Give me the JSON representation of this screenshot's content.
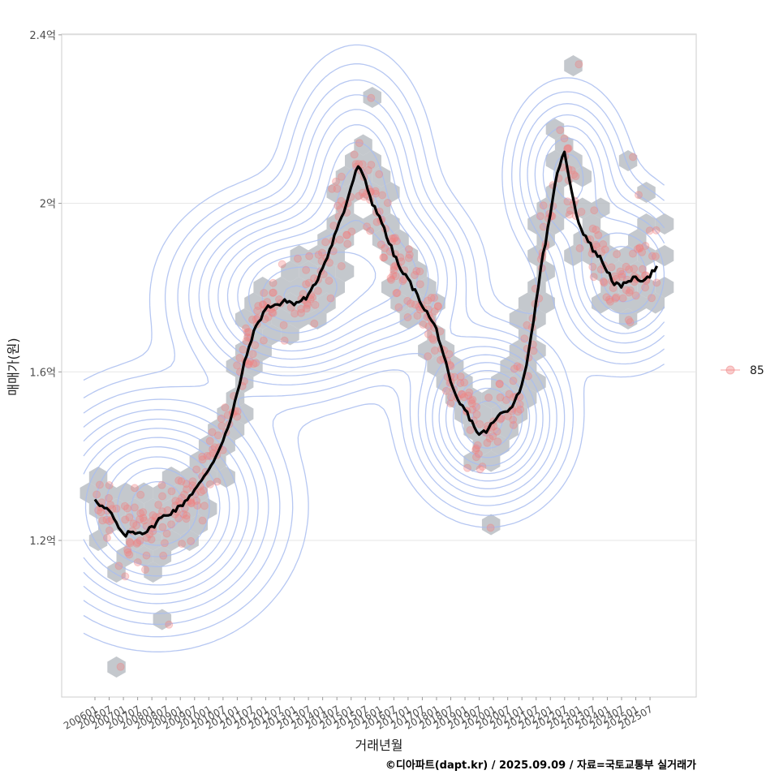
{
  "chart_data": {
    "type": "scatter",
    "x_label": "거래년월",
    "y_label": "매매가(원)",
    "caption": "©디아파트(dapt.kr) / 2025.09.09 / 자료=국토교통부 실거래가",
    "legend": [
      {
        "label": "85",
        "color": "#f08080"
      }
    ],
    "y_ticks": [
      {
        "value": 1.2,
        "label": "1.2억"
      },
      {
        "value": 1.6,
        "label": "1.6억"
      },
      {
        "value": 2.0,
        "label": "2억"
      },
      {
        "value": 2.4,
        "label": "2.4억"
      }
    ],
    "x_ticks": [
      "200601",
      "200607",
      "200701",
      "200707",
      "200801",
      "200807",
      "200901",
      "200907",
      "201001",
      "201007",
      "201101",
      "201107",
      "201201",
      "201207",
      "201301",
      "201307",
      "201401",
      "201407",
      "201501",
      "201507",
      "201601",
      "201607",
      "201701",
      "201707",
      "201801",
      "201807",
      "201901",
      "201907",
      "202001",
      "202007",
      "202101",
      "202107",
      "202201",
      "202207",
      "202301",
      "202307",
      "202401",
      "202407",
      "202501",
      "202507"
    ],
    "ylim": [
      0.84,
      2.42
    ],
    "trend_line": [
      [
        2006.0,
        1.3
      ],
      [
        2006.25,
        1.28
      ],
      [
        2006.5,
        1.27
      ],
      [
        2006.75,
        1.24
      ],
      [
        2007.0,
        1.21
      ],
      [
        2007.25,
        1.22
      ],
      [
        2007.5,
        1.22
      ],
      [
        2007.75,
        1.22
      ],
      [
        2008.0,
        1.23
      ],
      [
        2008.25,
        1.25
      ],
      [
        2008.5,
        1.26
      ],
      [
        2008.75,
        1.27
      ],
      [
        2009.0,
        1.28
      ],
      [
        2009.25,
        1.3
      ],
      [
        2009.5,
        1.32
      ],
      [
        2009.75,
        1.34
      ],
      [
        2010.0,
        1.37
      ],
      [
        2010.25,
        1.4
      ],
      [
        2010.5,
        1.44
      ],
      [
        2010.75,
        1.48
      ],
      [
        2011.0,
        1.55
      ],
      [
        2011.25,
        1.62
      ],
      [
        2011.5,
        1.68
      ],
      [
        2011.75,
        1.72
      ],
      [
        2012.0,
        1.75
      ],
      [
        2012.25,
        1.76
      ],
      [
        2012.5,
        1.76
      ],
      [
        2012.75,
        1.77
      ],
      [
        2013.0,
        1.76
      ],
      [
        2013.25,
        1.77
      ],
      [
        2013.5,
        1.78
      ],
      [
        2013.75,
        1.81
      ],
      [
        2014.0,
        1.85
      ],
      [
        2014.25,
        1.89
      ],
      [
        2014.5,
        1.94
      ],
      [
        2014.75,
        1.98
      ],
      [
        2015.0,
        2.04
      ],
      [
        2015.25,
        2.09
      ],
      [
        2015.5,
        2.05
      ],
      [
        2015.75,
        2.0
      ],
      [
        2016.0,
        1.97
      ],
      [
        2016.25,
        1.92
      ],
      [
        2016.5,
        1.88
      ],
      [
        2016.75,
        1.84
      ],
      [
        2017.0,
        1.82
      ],
      [
        2017.25,
        1.79
      ],
      [
        2017.5,
        1.76
      ],
      [
        2017.75,
        1.73
      ],
      [
        2018.0,
        1.7
      ],
      [
        2018.25,
        1.64
      ],
      [
        2018.5,
        1.57
      ],
      [
        2018.75,
        1.53
      ],
      [
        2019.0,
        1.51
      ],
      [
        2019.25,
        1.48
      ],
      [
        2019.5,
        1.45
      ],
      [
        2019.75,
        1.46
      ],
      [
        2020.0,
        1.48
      ],
      [
        2020.25,
        1.5
      ],
      [
        2020.5,
        1.51
      ],
      [
        2020.75,
        1.53
      ],
      [
        2021.0,
        1.57
      ],
      [
        2021.25,
        1.65
      ],
      [
        2021.5,
        1.77
      ],
      [
        2021.75,
        1.88
      ],
      [
        2022.0,
        1.97
      ],
      [
        2022.25,
        2.08
      ],
      [
        2022.5,
        2.12
      ],
      [
        2022.75,
        2.03
      ],
      [
        2023.0,
        1.95
      ],
      [
        2023.25,
        1.92
      ],
      [
        2023.5,
        1.89
      ],
      [
        2023.75,
        1.87
      ],
      [
        2024.0,
        1.84
      ],
      [
        2024.25,
        1.81
      ],
      [
        2024.5,
        1.8
      ],
      [
        2024.75,
        1.82
      ],
      [
        2025.0,
        1.82
      ],
      [
        2025.25,
        1.82
      ],
      [
        2025.5,
        1.83
      ],
      [
        2025.75,
        1.85
      ]
    ],
    "contour_centers": [
      {
        "x": 2008.2,
        "y": 1.28,
        "peak": 1.0,
        "sx": 2.0,
        "sy": 0.13
      },
      {
        "x": 2012.9,
        "y": 1.78,
        "peak": 0.9,
        "sx": 1.9,
        "sy": 0.11
      },
      {
        "x": 2015.2,
        "y": 2.05,
        "peak": 0.45,
        "sx": 1.2,
        "sy": 0.14
      },
      {
        "x": 2016.8,
        "y": 1.82,
        "peak": 0.4,
        "sx": 1.3,
        "sy": 0.1
      },
      {
        "x": 2019.8,
        "y": 1.49,
        "peak": 0.85,
        "sx": 1.3,
        "sy": 0.1
      },
      {
        "x": 2022.6,
        "y": 2.07,
        "peak": 0.4,
        "sx": 1.0,
        "sy": 0.1
      },
      {
        "x": 2024.6,
        "y": 1.83,
        "peak": 0.55,
        "sx": 1.2,
        "sy": 0.1
      }
    ]
  }
}
